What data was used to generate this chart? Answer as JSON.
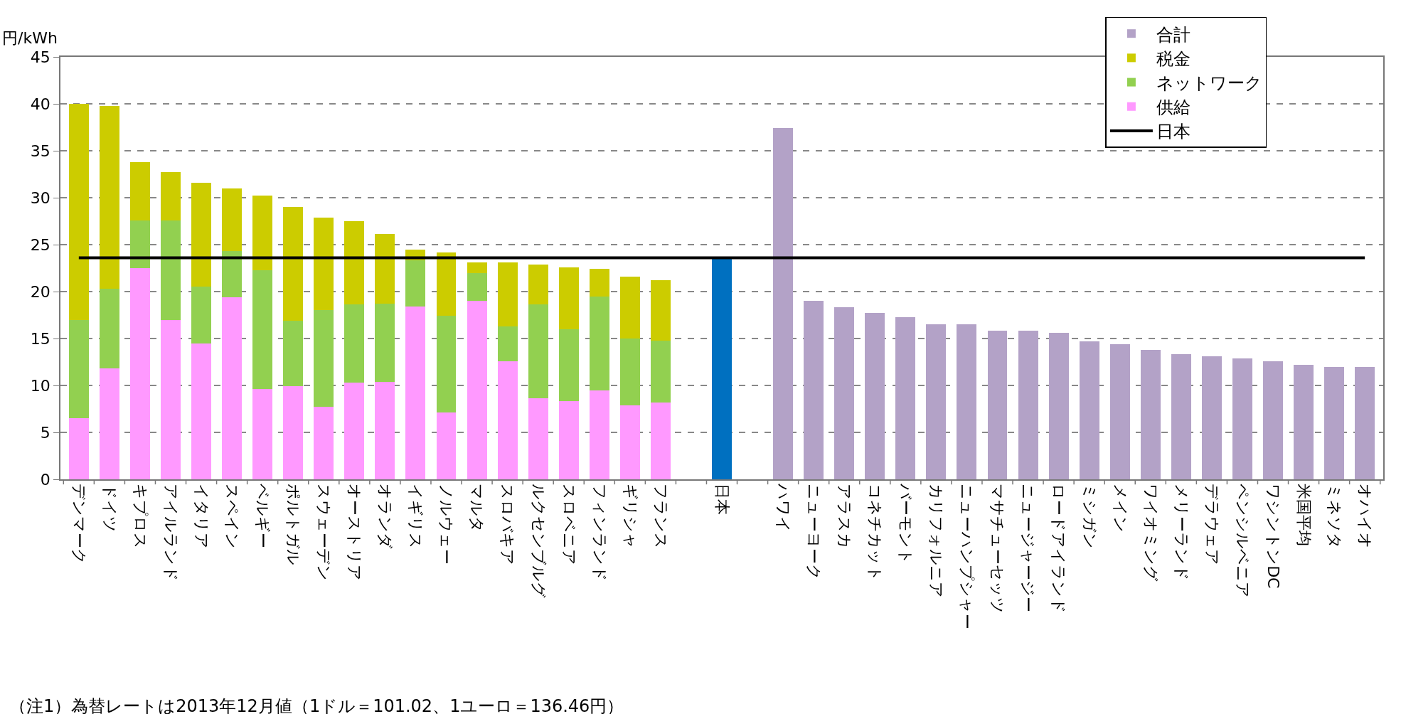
{
  "chart_data": {
    "type": "bar",
    "stacked": true,
    "ylabel": "円/kWh",
    "categories": [
      "デンマーク",
      "ドイツ",
      "キプロス",
      "アイルランド",
      "イタリア",
      "スペイン",
      "ベルギー",
      "ポルトガル",
      "スウェーデン",
      "オーストリア",
      "オランダ",
      "イギリス",
      "ノルウェー",
      "マルタ",
      "スロバキア",
      "ルクセンブルグ",
      "スロベニア",
      "フィンランド",
      "ギリシャ",
      "フランス",
      null,
      "日本",
      null,
      "ハワイ",
      "ニューヨーク",
      "アラスカ",
      "コネチカット",
      "バーモント",
      "カリフォルニア",
      "ニューハンプシャー",
      "マサチューセッツ",
      "ニュージャージー",
      "ロードアイランド",
      "ミシガン",
      "メイン",
      "ワイオミング",
      "メリーランド",
      "デラウェア",
      "ペンシルベニア",
      "ワシントンDC",
      "米国平均",
      "ミネソタ",
      "オハイオ"
    ],
    "series": [
      {
        "name": "供給",
        "color": "#ff99ff",
        "values": [
          6.5,
          11.8,
          22.5,
          17.0,
          14.5,
          19.4,
          9.6,
          9.9,
          7.7,
          10.3,
          10.4,
          18.4,
          7.1,
          19.0,
          12.6,
          8.6,
          8.3,
          9.5,
          7.9,
          8.2,
          null,
          null,
          null,
          null,
          null,
          null,
          null,
          null,
          null,
          null,
          null,
          null,
          null,
          null,
          null,
          null,
          null,
          null,
          null,
          null,
          null,
          null,
          null
        ]
      },
      {
        "name": "ネットワーク",
        "color": "#92d050",
        "values": [
          10.5,
          8.5,
          5.1,
          10.6,
          6.0,
          4.9,
          12.7,
          7.0,
          10.3,
          8.3,
          8.3,
          4.9,
          10.3,
          3.0,
          3.7,
          10.0,
          7.7,
          10.0,
          7.1,
          6.6,
          null,
          null,
          null,
          null,
          null,
          null,
          null,
          null,
          null,
          null,
          null,
          null,
          null,
          null,
          null,
          null,
          null,
          null,
          null,
          null,
          null,
          null,
          null
        ]
      },
      {
        "name": "税金",
        "color": "#cccc00",
        "values": [
          23.0,
          19.5,
          6.2,
          5.1,
          11.1,
          6.7,
          7.9,
          12.1,
          9.9,
          8.9,
          7.4,
          1.2,
          6.8,
          1.1,
          6.8,
          4.3,
          6.6,
          2.9,
          6.6,
          6.4,
          null,
          null,
          null,
          null,
          null,
          null,
          null,
          null,
          null,
          null,
          null,
          null,
          null,
          null,
          null,
          null,
          null,
          null,
          null,
          null,
          null,
          null,
          null
        ]
      },
      {
        "color": "#0070c0",
        "values": [
          null,
          null,
          null,
          null,
          null,
          null,
          null,
          null,
          null,
          null,
          null,
          null,
          null,
          null,
          null,
          null,
          null,
          null,
          null,
          null,
          null,
          23.6,
          null,
          null,
          null,
          null,
          null,
          null,
          null,
          null,
          null,
          null,
          null,
          null,
          null,
          null,
          null,
          null,
          null,
          null,
          null,
          null,
          null
        ]
      },
      {
        "name": "合計",
        "color": "#b3a2c7",
        "values": [
          null,
          null,
          null,
          null,
          null,
          null,
          null,
          null,
          null,
          null,
          null,
          null,
          null,
          null,
          null,
          null,
          null,
          null,
          null,
          null,
          null,
          null,
          null,
          37.4,
          19.0,
          18.3,
          17.7,
          17.3,
          16.5,
          16.5,
          15.8,
          15.8,
          15.6,
          14.7,
          14.4,
          13.8,
          13.3,
          13.1,
          12.9,
          12.6,
          12.2,
          12.0,
          12.0
        ]
      }
    ],
    "ref_lines": [
      {
        "axis": "y",
        "value": 23.6,
        "label": "日本",
        "color": "#000000",
        "line_style": "solid"
      }
    ],
    "ylim": [
      0,
      45
    ],
    "yticks": [
      0,
      5,
      10,
      15,
      20,
      25,
      30,
      35,
      40,
      45
    ],
    "grid": "y",
    "legend": "top right",
    "annotations": [
      "（注1）為替レートは2013年12月値（1ドル＝101.02、1ユーロ＝136.46円）"
    ]
  }
}
